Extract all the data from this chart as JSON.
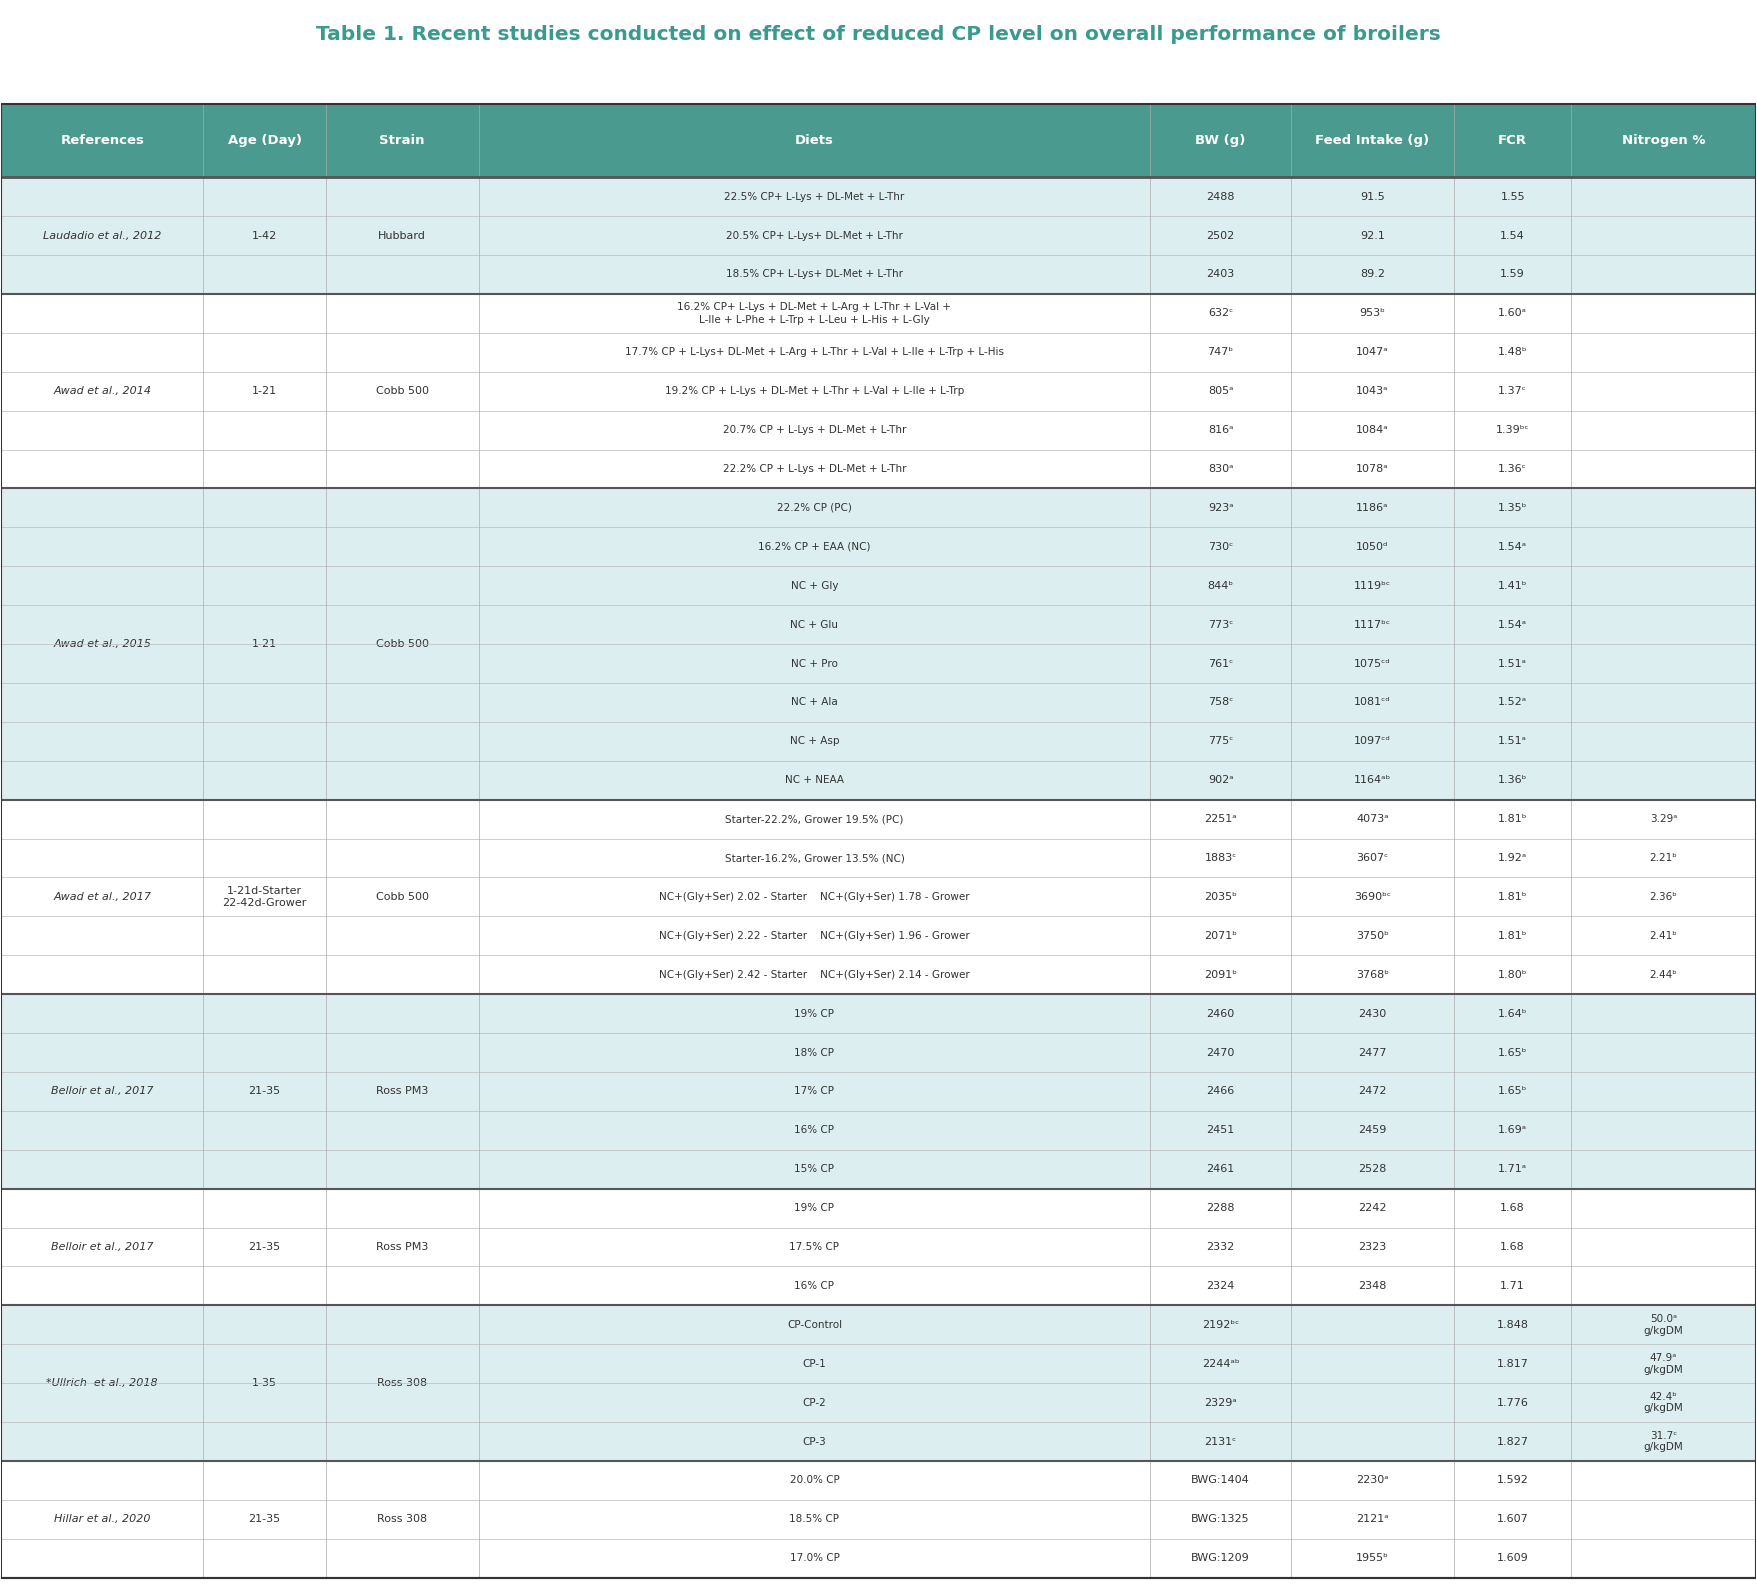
{
  "title": "Table 1. Recent studies conducted on effect of reduced CP level on overall performance of broilers",
  "title_color": "#3a9a8f",
  "header_bg": "#4a9a90",
  "header_text_color": "#ffffff",
  "header_labels": [
    "References",
    "Age (Day)",
    "Strain",
    "Diets",
    "BW (g)",
    "Feed Intake (g)",
    "FCR",
    "Nitrogen %"
  ],
  "row_bg_light": "#ddeef0",
  "row_bg_white": "#ffffff",
  "border_color": "#888888",
  "text_color": "#333333",
  "rows": [
    {
      "ref": "Laudadio et al., 2012",
      "age": "1-42",
      "strain": "Hubbard",
      "diet": "22.5% CP+ L-Lys + DL-Met + L-Thr",
      "bw": "2488",
      "fi": "91.5",
      "fcr": "1.55",
      "n": "",
      "group": 0
    },
    {
      "ref": "",
      "age": "",
      "strain": "",
      "diet": "20.5% CP+ L-Lys+ DL-Met + L-Thr",
      "bw": "2502",
      "fi": "92.1",
      "fcr": "1.54",
      "n": "",
      "group": 0
    },
    {
      "ref": "",
      "age": "",
      "strain": "",
      "diet": "18.5% CP+ L-Lys+ DL-Met + L-Thr",
      "bw": "2403",
      "fi": "89.2",
      "fcr": "1.59",
      "n": "",
      "group": 0
    },
    {
      "ref": "Awad et al., 2014",
      "age": "1-21",
      "strain": "Cobb 500",
      "diet": "16.2% CP+ L-Lys + DL-Met + L-Arg + L-Thr + L-Val +\nL-Ile + L-Phe + L-Trp + L-Leu + L-His + L-Gly",
      "bw": "632ᶜ",
      "fi": "953ᵇ",
      "fcr": "1.60ᵃ",
      "n": "",
      "group": 1
    },
    {
      "ref": "",
      "age": "",
      "strain": "",
      "diet": "17.7% CP + L-Lys+ DL-Met + L-Arg + L-Thr + L-Val + L-Ile + L-Trp + L-His",
      "bw": "747ᵇ",
      "fi": "1047ᵃ",
      "fcr": "1.48ᵇ",
      "n": "",
      "group": 1
    },
    {
      "ref": "",
      "age": "",
      "strain": "",
      "diet": "19.2% CP + L-Lys + DL-Met + L-Thr + L-Val + L-Ile + L-Trp",
      "bw": "805ᵃ",
      "fi": "1043ᵃ",
      "fcr": "1.37ᶜ",
      "n": "",
      "group": 1
    },
    {
      "ref": "",
      "age": "",
      "strain": "",
      "diet": "20.7% CP + L-Lys + DL-Met + L-Thr",
      "bw": "816ᵃ",
      "fi": "1084ᵃ",
      "fcr": "1.39ᵇᶜ",
      "n": "",
      "group": 1
    },
    {
      "ref": "",
      "age": "",
      "strain": "",
      "diet": "22.2% CP + L-Lys + DL-Met + L-Thr",
      "bw": "830ᵃ",
      "fi": "1078ᵃ",
      "fcr": "1.36ᶜ",
      "n": "",
      "group": 1
    },
    {
      "ref": "Awad et al., 2015",
      "age": "1-21",
      "strain": "Cobb 500",
      "diet": "22.2% CP (PC)",
      "bw": "923ᵃ",
      "fi": "1186ᵃ",
      "fcr": "1.35ᵇ",
      "n": "",
      "group": 0
    },
    {
      "ref": "",
      "age": "",
      "strain": "",
      "diet": "16.2% CP + EAA (NC)",
      "bw": "730ᶜ",
      "fi": "1050ᵈ",
      "fcr": "1.54ᵃ",
      "n": "",
      "group": 0
    },
    {
      "ref": "",
      "age": "",
      "strain": "",
      "diet": "NC + Gly",
      "bw": "844ᵇ",
      "fi": "1119ᵇᶜ",
      "fcr": "1.41ᵇ",
      "n": "",
      "group": 0
    },
    {
      "ref": "",
      "age": "",
      "strain": "",
      "diet": "NC + Glu",
      "bw": "773ᶜ",
      "fi": "1117ᵇᶜ",
      "fcr": "1.54ᵃ",
      "n": "",
      "group": 0
    },
    {
      "ref": "",
      "age": "",
      "strain": "",
      "diet": "NC + Pro",
      "bw": "761ᶜ",
      "fi": "1075ᶜᵈ",
      "fcr": "1.51ᵃ",
      "n": "",
      "group": 0
    },
    {
      "ref": "",
      "age": "",
      "strain": "",
      "diet": "NC + Ala",
      "bw": "758ᶜ",
      "fi": "1081ᶜᵈ",
      "fcr": "1.52ᵃ",
      "n": "",
      "group": 0
    },
    {
      "ref": "",
      "age": "",
      "strain": "",
      "diet": "NC + Asp",
      "bw": "775ᶜ",
      "fi": "1097ᶜᵈ",
      "fcr": "1.51ᵃ",
      "n": "",
      "group": 0
    },
    {
      "ref": "",
      "age": "",
      "strain": "",
      "diet": "NC + NEAA",
      "bw": "902ᵃ",
      "fi": "1164ᵃᵇ",
      "fcr": "1.36ᵇ",
      "n": "",
      "group": 0
    },
    {
      "ref": "Awad et al., 2017",
      "age": "1-21d-Starter\n22-42d-Grower",
      "strain": "Cobb 500",
      "diet": "Starter-22.2%, Grower 19.5% (PC)",
      "bw": "2251ᵃ",
      "fi": "4073ᵃ",
      "fcr": "1.81ᵇ",
      "n": "3.29ᵃ",
      "group": 1
    },
    {
      "ref": "",
      "age": "",
      "strain": "",
      "diet": "Starter-16.2%, Grower 13.5% (NC)",
      "bw": "1883ᶜ",
      "fi": "3607ᶜ",
      "fcr": "1.92ᵃ",
      "n": "2.21ᵇ",
      "group": 1
    },
    {
      "ref": "",
      "age": "",
      "strain": "",
      "diet": "NC+(Gly+Ser) 2.02 - Starter    NC+(Gly+Ser) 1.78 - Grower",
      "bw": "2035ᵇ",
      "fi": "3690ᵇᶜ",
      "fcr": "1.81ᵇ",
      "n": "2.36ᵇ",
      "group": 1
    },
    {
      "ref": "",
      "age": "",
      "strain": "",
      "diet": "NC+(Gly+Ser) 2.22 - Starter    NC+(Gly+Ser) 1.96 - Grower",
      "bw": "2071ᵇ",
      "fi": "3750ᵇ",
      "fcr": "1.81ᵇ",
      "n": "2.41ᵇ",
      "group": 1
    },
    {
      "ref": "",
      "age": "",
      "strain": "",
      "diet": "NC+(Gly+Ser) 2.42 - Starter    NC+(Gly+Ser) 2.14 - Grower",
      "bw": "2091ᵇ",
      "fi": "3768ᵇ",
      "fcr": "1.80ᵇ",
      "n": "2.44ᵇ",
      "group": 1
    },
    {
      "ref": "Belloir et al., 2017",
      "age": "21-35",
      "strain": "Ross PM3",
      "diet": "19% CP",
      "bw": "2460",
      "fi": "2430",
      "fcr": "1.64ᵇ",
      "n": "",
      "group": 0
    },
    {
      "ref": "",
      "age": "",
      "strain": "",
      "diet": "18% CP",
      "bw": "2470",
      "fi": "2477",
      "fcr": "1.65ᵇ",
      "n": "",
      "group": 0
    },
    {
      "ref": "",
      "age": "",
      "strain": "",
      "diet": "17% CP",
      "bw": "2466",
      "fi": "2472",
      "fcr": "1.65ᵇ",
      "n": "",
      "group": 0
    },
    {
      "ref": "",
      "age": "",
      "strain": "",
      "diet": "16% CP",
      "bw": "2451",
      "fi": "2459",
      "fcr": "1.69ᵃ",
      "n": "",
      "group": 0
    },
    {
      "ref": "",
      "age": "",
      "strain": "",
      "diet": "15% CP",
      "bw": "2461",
      "fi": "2528",
      "fcr": "1.71ᵃ",
      "n": "",
      "group": 0
    },
    {
      "ref": "Belloir et al., 2017",
      "age": "21-35",
      "strain": "Ross PM3",
      "diet": "19% CP",
      "bw": "2288",
      "fi": "2242",
      "fcr": "1.68",
      "n": "",
      "group": 1
    },
    {
      "ref": "",
      "age": "",
      "strain": "",
      "diet": "17.5% CP",
      "bw": "2332",
      "fi": "2323",
      "fcr": "1.68",
      "n": "",
      "group": 1
    },
    {
      "ref": "",
      "age": "",
      "strain": "",
      "diet": "16% CP",
      "bw": "2324",
      "fi": "2348",
      "fcr": "1.71",
      "n": "",
      "group": 1
    },
    {
      "ref": "*Ullrich  et al., 2018",
      "age": "1-35",
      "strain": "Ross 308",
      "diet": "CP-Control",
      "bw": "2192ᵇᶜ",
      "fi": "",
      "fcr": "1.848",
      "n": "50.0ᵃ\ng/kgDM",
      "group": 0
    },
    {
      "ref": "",
      "age": "",
      "strain": "",
      "diet": "CP-1",
      "bw": "2244ᵃᵇ",
      "fi": "",
      "fcr": "1.817",
      "n": "47.9ᵃ\ng/kgDM",
      "group": 0
    },
    {
      "ref": "",
      "age": "",
      "strain": "",
      "diet": "CP-2",
      "bw": "2329ᵃ",
      "fi": "",
      "fcr": "1.776",
      "n": "42.4ᵇ\ng/kgDM",
      "group": 0
    },
    {
      "ref": "",
      "age": "",
      "strain": "",
      "diet": "CP-3",
      "bw": "2131ᶜ",
      "fi": "",
      "fcr": "1.827",
      "n": "31.7ᶜ\ng/kgDM",
      "group": 0
    },
    {
      "ref": "Hillar et al., 2020",
      "age": "21-35",
      "strain": "Ross 308",
      "diet": "20.0% CP",
      "bw": "BWG:1404",
      "fi": "2230ᵃ",
      "fcr": "1.592",
      "n": "",
      "group": 1
    },
    {
      "ref": "",
      "age": "",
      "strain": "",
      "diet": "18.5% CP",
      "bw": "BWG:1325",
      "fi": "2121ᵃ",
      "fcr": "1.607",
      "n": "",
      "group": 1
    },
    {
      "ref": "",
      "age": "",
      "strain": "",
      "diet": "17.0% CP",
      "bw": "BWG:1209",
      "fi": "1955ᵇ",
      "fcr": "1.609",
      "n": "",
      "group": 1
    }
  ],
  "group_boundaries": [
    0,
    3,
    8,
    16,
    21,
    26,
    29,
    33,
    36
  ],
  "group_colors": [
    "#ddeef0",
    "#ffffff"
  ]
}
